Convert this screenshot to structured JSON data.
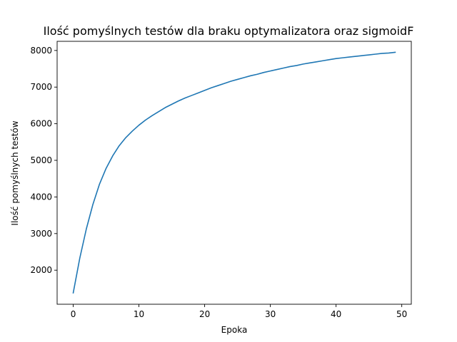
{
  "chart_data": {
    "type": "line",
    "title": "Ilość pomyślnych testów dla braku optymalizatora oraz sigmoidF",
    "xlabel": "Epoka",
    "ylabel": "Ilość pomyślnych testów",
    "xlim": [
      -2.45,
      51.45
    ],
    "ylim": [
      1070,
      8250
    ],
    "x_ticks": [
      0,
      10,
      20,
      30,
      40,
      50
    ],
    "y_ticks": [
      2000,
      3000,
      4000,
      5000,
      6000,
      7000,
      8000
    ],
    "grid": false,
    "legend": "none",
    "colors": {
      "line": "#1f77b4",
      "axes": "#000000",
      "background": "#ffffff"
    },
    "series": [
      {
        "x": [
          0,
          1,
          2,
          3,
          4,
          5,
          6,
          7,
          8,
          9,
          10,
          11,
          12,
          13,
          14,
          15,
          16,
          17,
          18,
          19,
          20,
          21,
          22,
          23,
          24,
          25,
          26,
          27,
          28,
          29,
          30,
          31,
          32,
          33,
          34,
          35,
          36,
          37,
          38,
          39,
          40,
          41,
          42,
          43,
          44,
          45,
          46,
          47,
          48,
          49
        ],
        "values": [
          1380,
          2330,
          3130,
          3800,
          4350,
          4780,
          5120,
          5400,
          5620,
          5800,
          5960,
          6100,
          6220,
          6330,
          6440,
          6530,
          6620,
          6700,
          6770,
          6840,
          6910,
          6980,
          7040,
          7100,
          7160,
          7210,
          7260,
          7310,
          7350,
          7400,
          7440,
          7480,
          7520,
          7560,
          7590,
          7630,
          7660,
          7690,
          7720,
          7750,
          7780,
          7800,
          7820,
          7840,
          7860,
          7880,
          7900,
          7920,
          7930,
          7950
        ]
      }
    ]
  }
}
